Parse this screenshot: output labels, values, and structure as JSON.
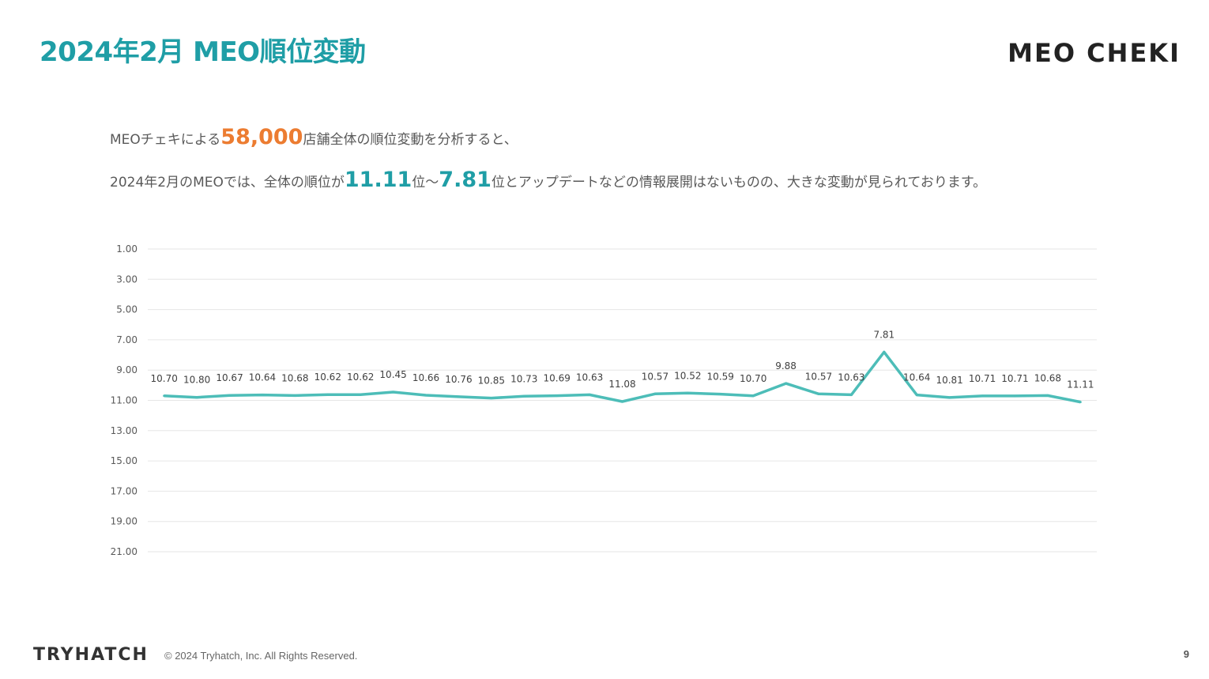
{
  "page": {
    "title": "2024年2月 MEO順位変動",
    "brand_main": "MEO CHEKI",
    "page_number": "9"
  },
  "description": {
    "line1_prefix": "MEOチェキによる",
    "line1_highlight": "58,000",
    "line1_suffix": "店舗全体の順位変動を分析すると、",
    "line2_prefix": "2024年2月のMEOでは、全体の順位が",
    "line2_highlight_a": "11.11",
    "line2_mid": "位〜",
    "line2_highlight_b": "7.81",
    "line2_suffix": "位とアップデートなどの情報展開はないものの、大きな変動が見られております。"
  },
  "footer": {
    "company_logo": "TRYHATCH",
    "copyright": "© 2024 Tryhatch, Inc. All Rights Reserved."
  },
  "colors": {
    "accent": "#1f9ea6",
    "highlight": "#ec7c31",
    "line": "#4dbdb8",
    "grid": "#e6e6e6"
  },
  "chart_data": {
    "type": "line",
    "y_reversed": true,
    "ylim": [
      1,
      21
    ],
    "yticks": [
      "1.00",
      "3.00",
      "5.00",
      "7.00",
      "9.00",
      "11.00",
      "13.00",
      "15.00",
      "17.00",
      "19.00",
      "21.00"
    ],
    "grid": true,
    "series": [
      {
        "values": [
          10.7,
          10.8,
          10.67,
          10.64,
          10.68,
          10.62,
          10.62,
          10.45,
          10.66,
          10.76,
          10.85,
          10.73,
          10.69,
          10.63,
          11.08,
          10.57,
          10.52,
          10.59,
          10.7,
          9.88,
          10.57,
          10.63,
          7.81,
          10.64,
          10.81,
          10.71,
          10.71,
          10.68,
          11.11
        ],
        "labels": [
          "10.70",
          "10.80",
          "10.67",
          "10.64",
          "10.68",
          "10.62",
          "10.62",
          "10.45",
          "10.66",
          "10.76",
          "10.85",
          "10.73",
          "10.69",
          "10.63",
          "11.08",
          "10.57",
          "10.52",
          "10.59",
          "10.70",
          "9.88",
          "10.57",
          "10.63",
          "7.81",
          "10.64",
          "10.81",
          "10.71",
          "10.71",
          "10.68",
          "11.11"
        ]
      }
    ]
  }
}
